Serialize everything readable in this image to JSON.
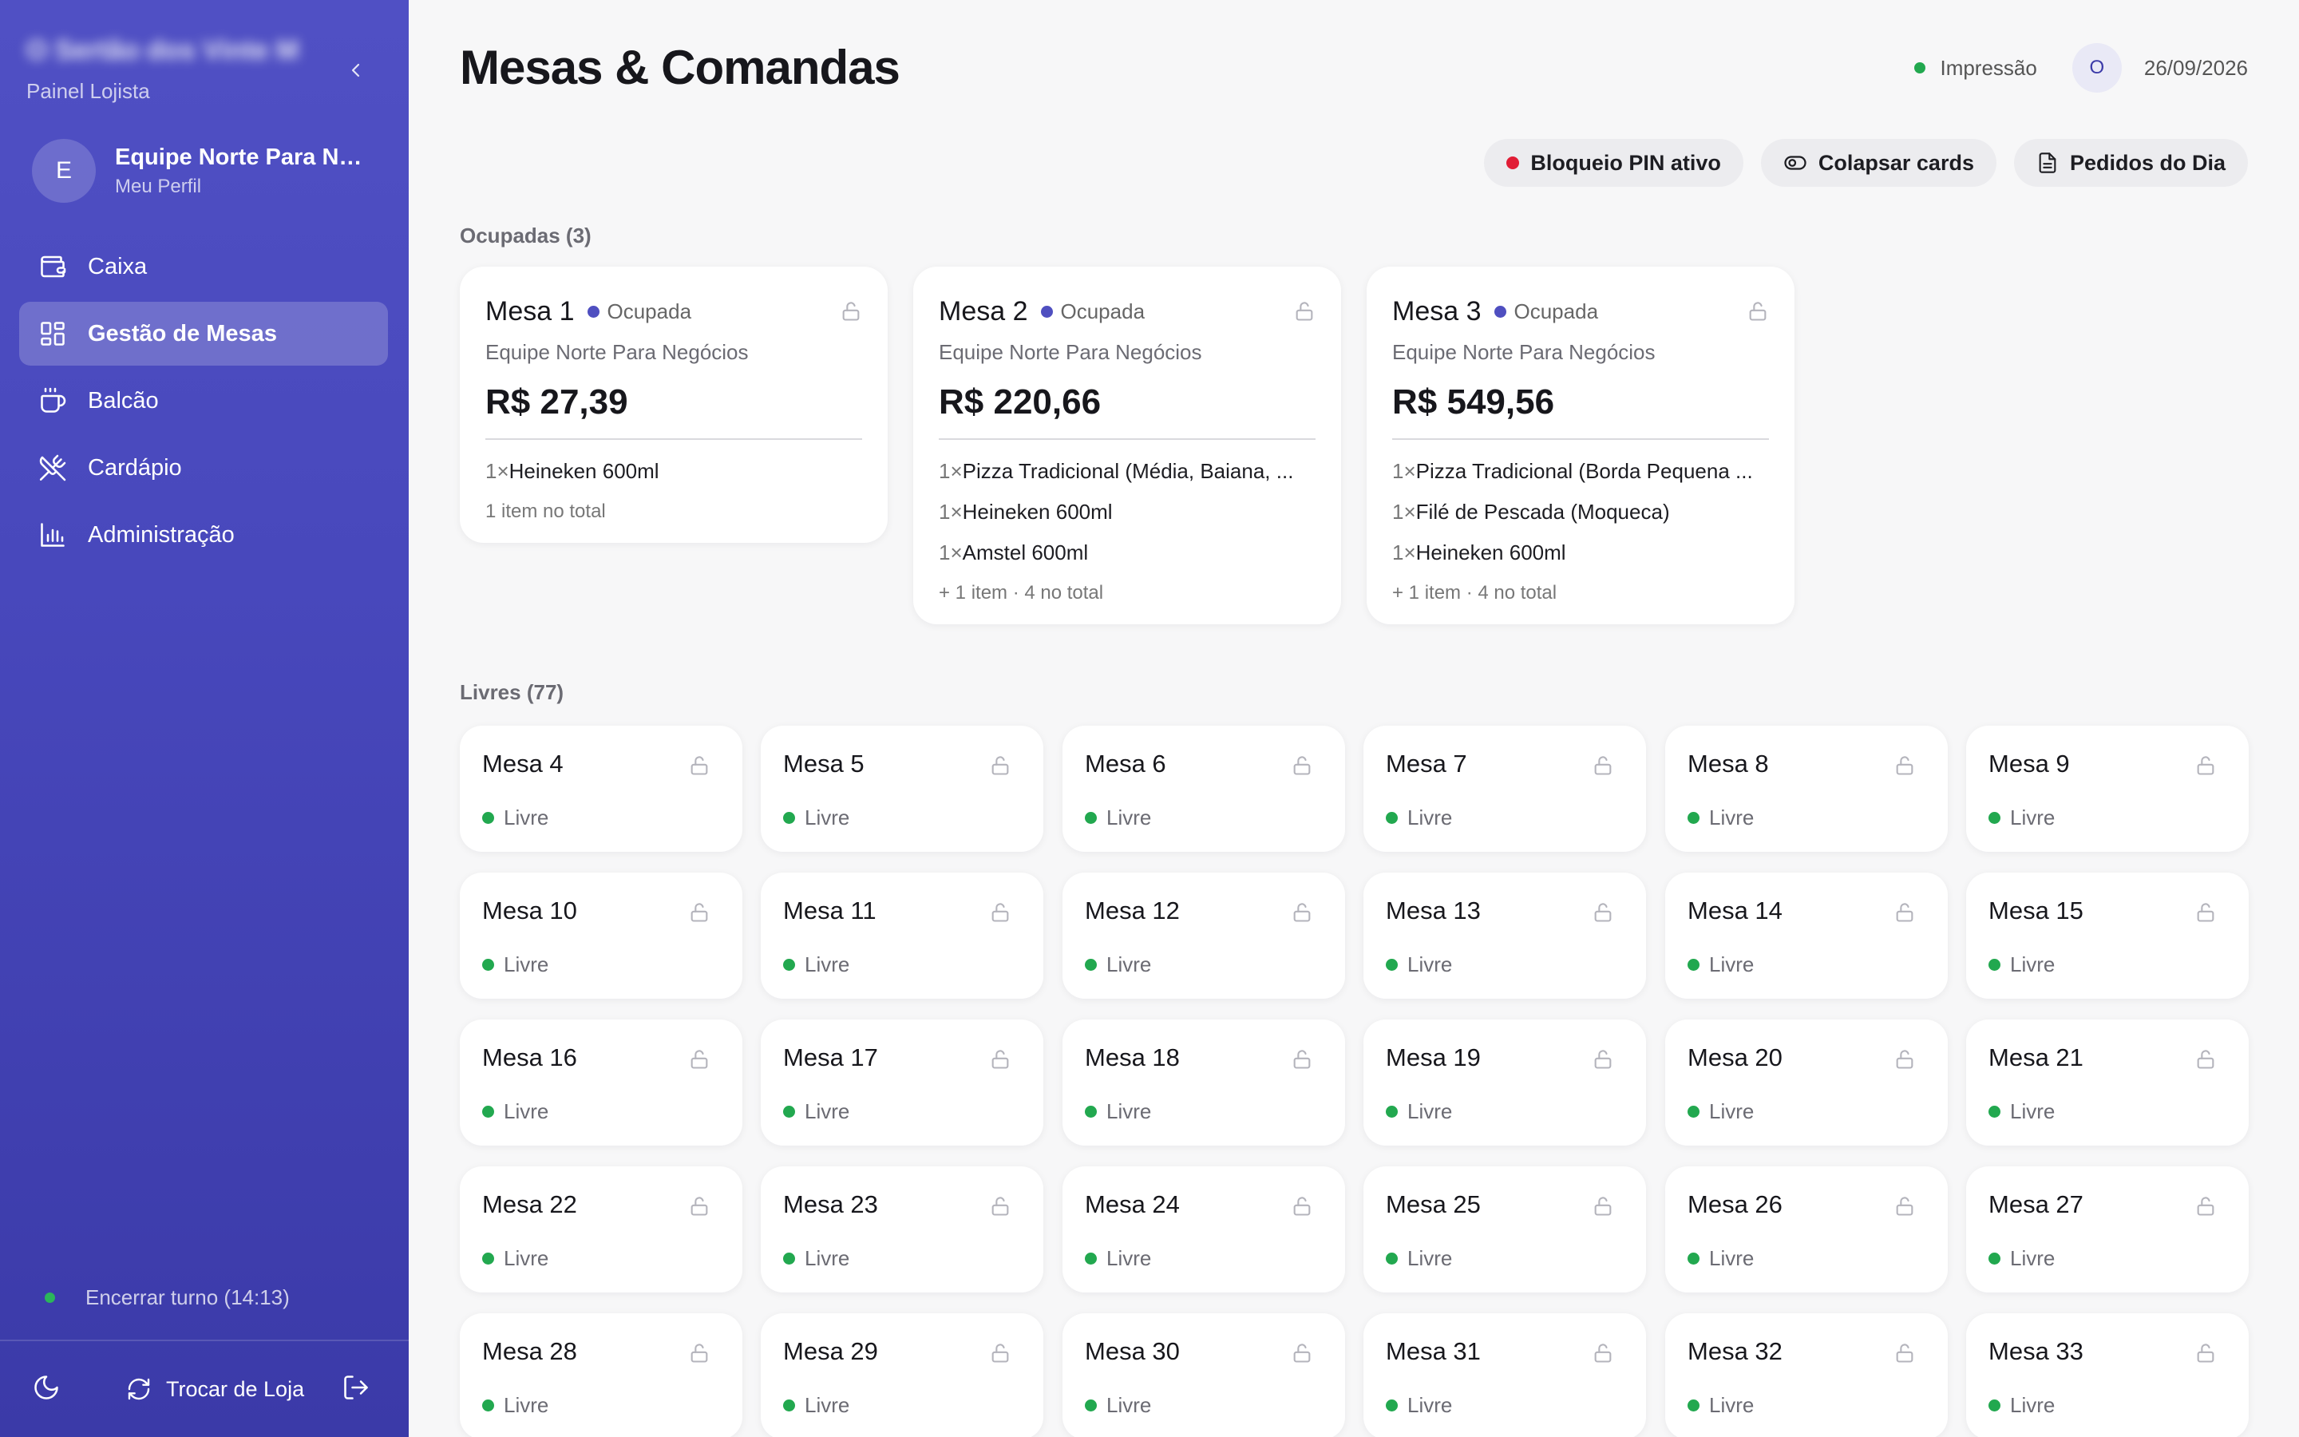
{
  "sidebar": {
    "store_name": "O Sertão dos Vinte Mil",
    "store_subtitle": "Painel Lojista",
    "profile": {
      "initial": "E",
      "name": "Equipe Norte Para Negócios",
      "link": "Meu Perfil"
    },
    "items": [
      {
        "label": "Caixa",
        "icon": "wallet-icon",
        "active": false
      },
      {
        "label": "Gestão de Mesas",
        "icon": "grid-icon",
        "active": true
      },
      {
        "label": "Balcão",
        "icon": "coffee-cup-icon",
        "active": false
      },
      {
        "label": "Cardápio",
        "icon": "utensils-crossed-icon",
        "active": false
      },
      {
        "label": "Administração",
        "icon": "bar-chart-icon",
        "active": false
      }
    ],
    "shift_label": "Encerrar turno (14:13)",
    "switch_store_label": "Trocar de Loja"
  },
  "header": {
    "title": "Mesas & Comandas",
    "print_status": "Impressão",
    "user_initial": "O",
    "date": "26/09/2026"
  },
  "toolbar": {
    "pin_lock": "Bloqueio PIN ativo",
    "collapse_cards": "Colapsar cards",
    "daily_orders": "Pedidos do Dia"
  },
  "sections": {
    "occupied_label": "Ocupadas (3)",
    "free_label": "Livres (77)"
  },
  "occupied_tables": [
    {
      "name": "Mesa 1",
      "status": "Ocupada",
      "team": "Equipe Norte Para Negócios",
      "total": "R$ 27,39",
      "items": [
        {
          "qty": "1×",
          "name": "Heineken 600ml"
        }
      ],
      "summary": "1 item no total"
    },
    {
      "name": "Mesa 2",
      "status": "Ocupada",
      "team": "Equipe Norte Para Negócios",
      "total": "R$ 220,66",
      "items": [
        {
          "qty": "1×",
          "name": "Pizza Tradicional (Média, Baiana, ..."
        },
        {
          "qty": "1×",
          "name": "Heineken 600ml"
        },
        {
          "qty": "1×",
          "name": "Amstel 600ml"
        }
      ],
      "summary": "+ 1 item · 4 no total"
    },
    {
      "name": "Mesa 3",
      "status": "Ocupada",
      "team": "Equipe Norte Para Negócios",
      "total": "R$ 549,56",
      "items": [
        {
          "qty": "1×",
          "name": "Pizza Tradicional (Borda Pequena ..."
        },
        {
          "qty": "1×",
          "name": "Filé de Pescada (Moqueca)"
        },
        {
          "qty": "1×",
          "name": "Heineken 600ml"
        }
      ],
      "summary": "+ 1 item · 4 no total"
    }
  ],
  "free_tables": [
    "Mesa 4",
    "Mesa 5",
    "Mesa 6",
    "Mesa 7",
    "Mesa 8",
    "Mesa 9",
    "Mesa 10",
    "Mesa 11",
    "Mesa 12",
    "Mesa 13",
    "Mesa 14",
    "Mesa 15",
    "Mesa 16",
    "Mesa 17",
    "Mesa 18",
    "Mesa 19",
    "Mesa 20",
    "Mesa 21",
    "Mesa 22",
    "Mesa 23",
    "Mesa 24",
    "Mesa 25",
    "Mesa 26",
    "Mesa 27",
    "Mesa 28",
    "Mesa 29",
    "Mesa 30",
    "Mesa 31",
    "Mesa 32",
    "Mesa 33"
  ],
  "free_status": "Livre",
  "colors": {
    "sidebar_top": "#5050c4",
    "sidebar_bottom": "#3b3aa8",
    "occupied_dot": "#4f4fc0",
    "free_dot": "#22a84f",
    "pin_dot": "#e11d36"
  }
}
